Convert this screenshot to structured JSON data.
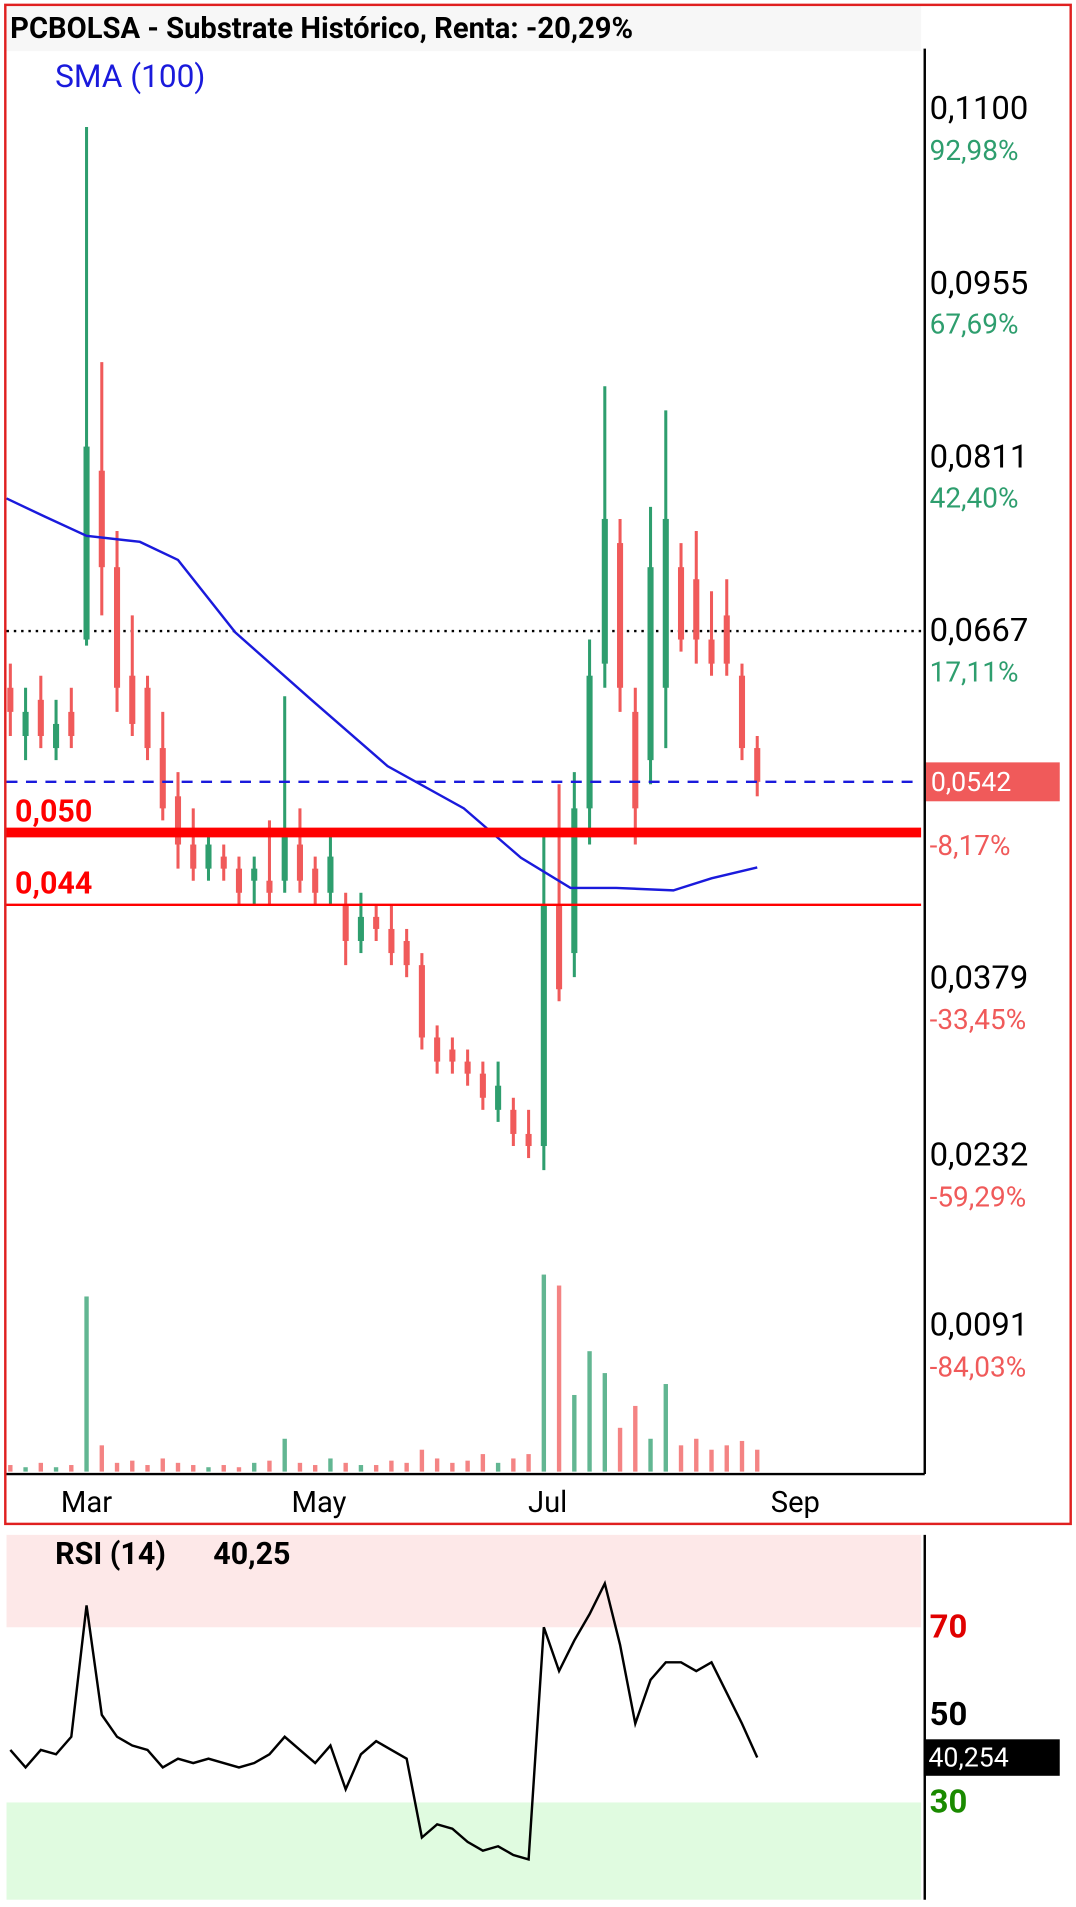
{
  "chart_data": [
    {
      "type": "candlestick",
      "title": "PCBOLSA - Substrate Histórico, Renta: -20,29%",
      "x": [
        1,
        5,
        9,
        13,
        17,
        21,
        25,
        29,
        33,
        37,
        41,
        45,
        49,
        53,
        57,
        61,
        65,
        69,
        73,
        77,
        81,
        85,
        89,
        93,
        97,
        101,
        105,
        109,
        113,
        117,
        121,
        125,
        129,
        133,
        137,
        141,
        145,
        149,
        153,
        157,
        161,
        165,
        169,
        173,
        177,
        181,
        185,
        189,
        193,
        197
      ],
      "open": [
        0.062,
        0.058,
        0.061,
        0.057,
        0.06,
        0.066,
        0.08,
        0.072,
        0.063,
        0.062,
        0.057,
        0.053,
        0.049,
        0.047,
        0.048,
        0.047,
        0.046,
        0.046,
        0.046,
        0.049,
        0.047,
        0.045,
        0.044,
        0.041,
        0.043,
        0.042,
        0.041,
        0.039,
        0.033,
        0.032,
        0.031,
        0.03,
        0.027,
        0.027,
        0.025,
        0.024,
        0.044,
        0.04,
        0.052,
        0.064,
        0.074,
        0.06,
        0.056,
        0.062,
        0.072,
        0.071,
        0.066,
        0.068,
        0.063,
        0.057
      ],
      "high": [
        0.064,
        0.062,
        0.063,
        0.061,
        0.062,
        0.1085,
        0.089,
        0.075,
        0.068,
        0.063,
        0.06,
        0.055,
        0.052,
        0.05,
        0.049,
        0.048,
        0.048,
        0.051,
        0.0613,
        0.052,
        0.048,
        0.05,
        0.045,
        0.045,
        0.044,
        0.044,
        0.042,
        0.04,
        0.034,
        0.033,
        0.032,
        0.031,
        0.031,
        0.028,
        0.027,
        0.05,
        0.054,
        0.055,
        0.066,
        0.087,
        0.076,
        0.062,
        0.077,
        0.085,
        0.074,
        0.075,
        0.07,
        0.071,
        0.064,
        0.058
      ],
      "low": [
        0.058,
        0.056,
        0.057,
        0.056,
        0.057,
        0.0655,
        0.068,
        0.06,
        0.058,
        0.056,
        0.051,
        0.047,
        0.046,
        0.046,
        0.046,
        0.044,
        0.044,
        0.044,
        0.045,
        0.045,
        0.044,
        0.044,
        0.039,
        0.04,
        0.041,
        0.039,
        0.038,
        0.032,
        0.03,
        0.03,
        0.029,
        0.027,
        0.026,
        0.024,
        0.023,
        0.022,
        0.036,
        0.038,
        0.049,
        0.062,
        0.06,
        0.049,
        0.054,
        0.057,
        0.065,
        0.064,
        0.063,
        0.063,
        0.056,
        0.053
      ],
      "close": [
        0.06,
        0.06,
        0.058,
        0.059,
        0.058,
        0.082,
        0.072,
        0.062,
        0.059,
        0.057,
        0.052,
        0.049,
        0.047,
        0.049,
        0.047,
        0.045,
        0.047,
        0.045,
        0.05,
        0.046,
        0.045,
        0.048,
        0.041,
        0.043,
        0.042,
        0.04,
        0.039,
        0.033,
        0.031,
        0.031,
        0.03,
        0.028,
        0.029,
        0.025,
        0.024,
        0.044,
        0.037,
        0.052,
        0.063,
        0.076,
        0.062,
        0.052,
        0.072,
        0.076,
        0.066,
        0.066,
        0.064,
        0.064,
        0.057,
        0.0542
      ],
      "value_labels": [
        null,
        null,
        null,
        null,
        null,
        null,
        null,
        null,
        null,
        null,
        null,
        null,
        null,
        null,
        null,
        null,
        null,
        null,
        null,
        null,
        null,
        null,
        null,
        null,
        null,
        null,
        null,
        null,
        null,
        null,
        null,
        null,
        null,
        null,
        null,
        null,
        null,
        null,
        null,
        null,
        null,
        null,
        null,
        null,
        null,
        null,
        null,
        null,
        null,
        "0,0542"
      ],
      "up_color": "#2e9e6e",
      "down_color": "#f05a5a",
      "xlim": [
        0,
        240
      ],
      "xticks": [
        {
          "value": 21,
          "label": "Mar"
        },
        {
          "value": 82,
          "label": "May"
        },
        {
          "value": 142,
          "label": "Jul"
        },
        {
          "value": 207,
          "label": "Sep"
        }
      ],
      "ylim": [
        -0.003,
        0.115
      ],
      "yticks": [
        {
          "value": 0.11,
          "label": "0,1100"
        },
        {
          "value": 0.0955,
          "label": "0,0955"
        },
        {
          "value": 0.0811,
          "label": "0,0811"
        },
        {
          "value": 0.0667,
          "label": "0,0667"
        },
        {
          "value": 0.0379,
          "label": "0,0379"
        },
        {
          "value": 0.0232,
          "label": "0,0232"
        },
        {
          "value": 0.0091,
          "label": "0,0091"
        }
      ],
      "y2lim": [
        -105.26,
        101.75
      ],
      "y2ticks": [
        {
          "value": 92.98,
          "label": "92,98%"
        },
        {
          "value": 67.69,
          "label": "67,69%"
        },
        {
          "value": 42.4,
          "label": "42,40%"
        },
        {
          "value": 17.11,
          "label": "17,11%"
        },
        {
          "value": -8.17,
          "label": "-8,17%"
        },
        {
          "value": -33.45,
          "label": "-33,45%"
        },
        {
          "value": -59.29,
          "label": "-59,29%"
        },
        {
          "value": -84.03,
          "label": "-84,03%"
        }
      ],
      "grid": true,
      "reference_line": 0.0667,
      "levels": [
        {
          "value": 0.05,
          "label": "0,050"
        },
        {
          "value": 0.044,
          "label": "0,044"
        }
      ],
      "level_color": "#ff0000",
      "series": [
        {
          "name": "SMA (100)",
          "color": "#1a1adc",
          "x": [
            0,
            10,
            21,
            35,
            45,
            60,
            80,
            100,
            120,
            135,
            148,
            160,
            175,
            185,
            197
          ],
          "values": [
            0.0777,
            0.0762,
            0.0746,
            0.0741,
            0.0726,
            0.0666,
            0.061,
            0.0555,
            0.052,
            0.0479,
            0.0454,
            0.0454,
            0.0452,
            0.0462,
            0.0471
          ]
        }
      ]
    },
    {
      "type": "bar",
      "x": [
        1,
        5,
        9,
        13,
        17,
        21,
        25,
        29,
        33,
        37,
        41,
        45,
        49,
        53,
        57,
        61,
        65,
        69,
        73,
        77,
        81,
        85,
        89,
        93,
        97,
        101,
        105,
        109,
        113,
        117,
        121,
        125,
        129,
        133,
        137,
        141,
        145,
        149,
        153,
        157,
        161,
        165,
        169,
        173,
        177,
        181,
        185,
        189,
        193,
        197
      ],
      "values": [
        3,
        2,
        4,
        2,
        3,
        80,
        12,
        4,
        5,
        3,
        6,
        4,
        3,
        2,
        3,
        2,
        4,
        5,
        15,
        4,
        3,
        6,
        4,
        3,
        3,
        5,
        4,
        10,
        6,
        4,
        5,
        8,
        4,
        6,
        8,
        90,
        85,
        35,
        55,
        45,
        20,
        30,
        15,
        40,
        12,
        15,
        10,
        12,
        14,
        10
      ],
      "xlim": [
        0,
        240
      ],
      "ylim": [
        0,
        100
      ]
    },
    {
      "type": "line",
      "title": "RSI (14)",
      "current": {
        "value": 40.25,
        "label": "40,25"
      },
      "x": [
        1,
        5,
        9,
        13,
        17,
        21,
        25,
        29,
        33,
        37,
        41,
        45,
        49,
        53,
        57,
        61,
        65,
        69,
        73,
        77,
        81,
        85,
        89,
        93,
        97,
        101,
        105,
        109,
        113,
        117,
        121,
        125,
        129,
        133,
        137,
        141,
        145,
        149,
        153,
        157,
        161,
        165,
        169,
        173,
        177,
        181,
        185,
        189,
        193,
        197
      ],
      "values": [
        42,
        38,
        42,
        41,
        45,
        75,
        50,
        45,
        43,
        42,
        38,
        40,
        39,
        40,
        39,
        38,
        39,
        41,
        45,
        42,
        39,
        43,
        33,
        41,
        44,
        42,
        40,
        22,
        25,
        24,
        21,
        19,
        20,
        18,
        17,
        70,
        60,
        67,
        73,
        80,
        66,
        48,
        58,
        62,
        62,
        60,
        62,
        55,
        48,
        40.254
      ],
      "value_labels": [
        null,
        null,
        null,
        null,
        null,
        null,
        null,
        null,
        null,
        null,
        null,
        null,
        null,
        null,
        null,
        null,
        null,
        null,
        null,
        null,
        null,
        null,
        null,
        null,
        null,
        null,
        null,
        null,
        null,
        null,
        null,
        null,
        null,
        null,
        null,
        null,
        null,
        null,
        null,
        null,
        null,
        null,
        null,
        null,
        null,
        null,
        null,
        null,
        null,
        "40,254"
      ],
      "color": "#000000",
      "xlim": [
        0,
        240
      ],
      "ylim": [
        7.8,
        91.1
      ],
      "yticks": [
        70,
        50,
        30
      ],
      "tick_colors": [
        "#e00000",
        "#000000",
        "#1a8a00"
      ],
      "zones": {
        "upper": 70,
        "lower": 30,
        "upper_color": "#fde8e8",
        "lower_color": "#e0fbe0"
      }
    }
  ]
}
